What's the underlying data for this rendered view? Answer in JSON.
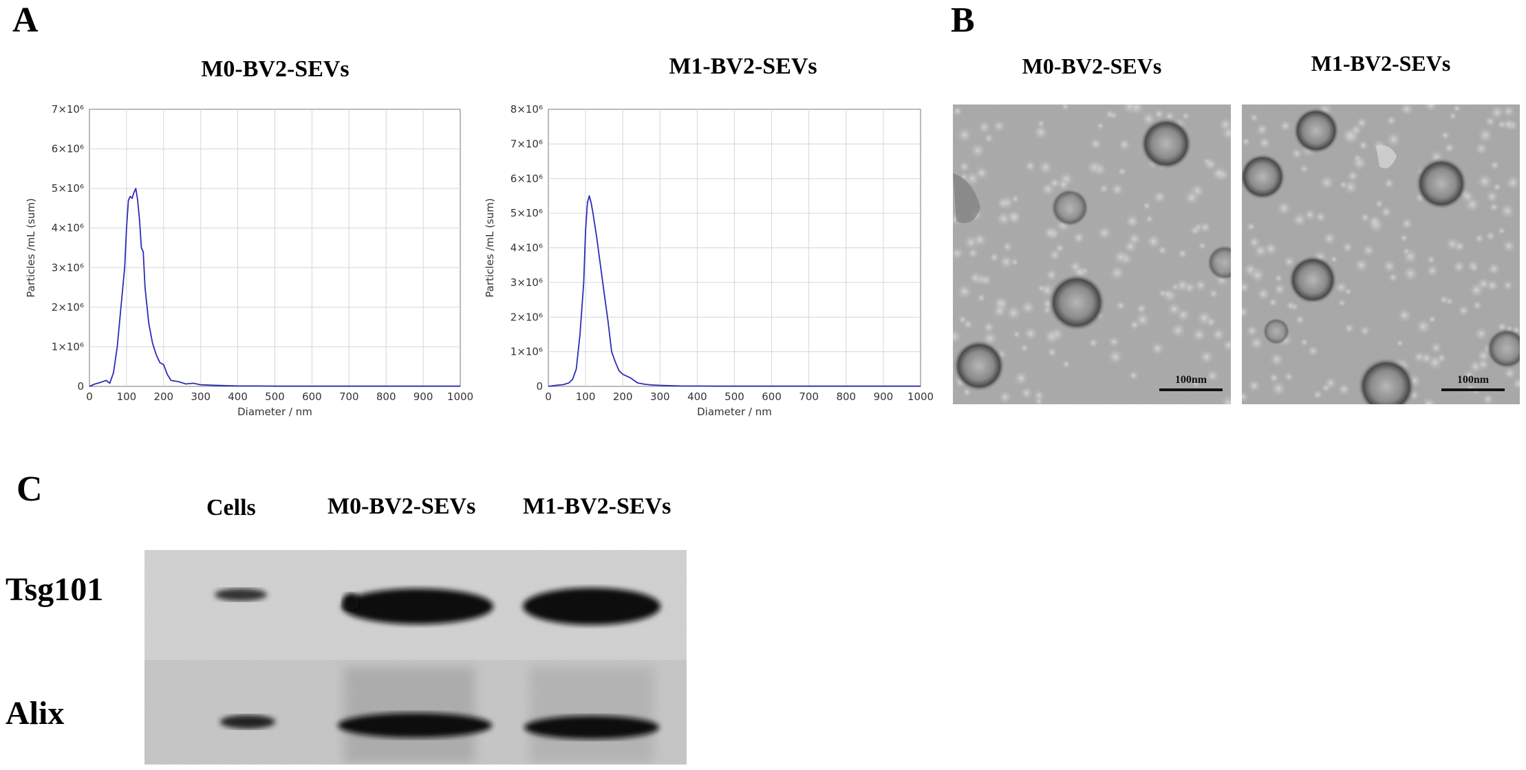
{
  "figure": {
    "panel_labels": {
      "a": "A",
      "b": "B",
      "c": "C"
    }
  },
  "chart_data": [
    {
      "type": "line",
      "title": "M0-BV2-SEVs",
      "xlabel": "Diameter / nm",
      "ylabel": "Particles /mL (sum)",
      "xlim": [
        0,
        1000
      ],
      "ylim": [
        0,
        7000000
      ],
      "xticks": [
        0,
        100,
        200,
        300,
        400,
        500,
        600,
        700,
        800,
        900,
        1000
      ],
      "yticks": [
        "0",
        "1×10⁶",
        "2×10⁶",
        "3×10⁶",
        "4×10⁶",
        "5×10⁶",
        "6×10⁶",
        "7×10⁶"
      ],
      "grid": true,
      "series": [
        {
          "color": "#2b2bb8",
          "x": [
            0,
            15,
            30,
            45,
            55,
            65,
            75,
            85,
            95,
            100,
            105,
            110,
            115,
            120,
            125,
            130,
            135,
            140,
            145,
            150,
            160,
            170,
            180,
            190,
            200,
            210,
            220,
            240,
            260,
            280,
            300,
            330,
            360,
            400,
            450,
            500,
            600,
            700,
            800,
            900,
            1000
          ],
          "y": [
            0,
            60000,
            100000,
            150000,
            80000,
            350000,
            1000000,
            2000000,
            3000000,
            4000000,
            4700000,
            4800000,
            4750000,
            4900000,
            5000000,
            4700000,
            4200000,
            3500000,
            3400000,
            2500000,
            1600000,
            1100000,
            800000,
            600000,
            550000,
            300000,
            150000,
            120000,
            60000,
            80000,
            40000,
            30000,
            20000,
            10000,
            10000,
            5000,
            5000,
            5000,
            5000,
            5000,
            5000
          ]
        }
      ]
    },
    {
      "type": "line",
      "title": "M1-BV2-SEVs",
      "xlabel": "Diameter / nm",
      "ylabel": "Particles /mL (sum)",
      "xlim": [
        0,
        1000
      ],
      "ylim": [
        0,
        8000000
      ],
      "xticks": [
        0,
        100,
        200,
        300,
        400,
        500,
        600,
        700,
        800,
        900,
        1000
      ],
      "yticks": [
        "0",
        "1×10⁶",
        "2×10⁶",
        "3×10⁶",
        "4×10⁶",
        "5×10⁶",
        "6×10⁶",
        "7×10⁶",
        "8×10⁶"
      ],
      "grid": true,
      "series": [
        {
          "color": "#2b2bb8",
          "x": [
            0,
            20,
            40,
            55,
            65,
            75,
            85,
            95,
            100,
            105,
            110,
            115,
            120,
            130,
            140,
            150,
            160,
            170,
            180,
            190,
            200,
            210,
            220,
            240,
            260,
            280,
            300,
            330,
            360,
            400,
            450,
            500,
            600,
            700,
            800,
            900,
            1000
          ],
          "y": [
            0,
            30000,
            50000,
            100000,
            200000,
            500000,
            1500000,
            3000000,
            4500000,
            5300000,
            5500000,
            5300000,
            5000000,
            4300000,
            3500000,
            2700000,
            1900000,
            1000000,
            700000,
            450000,
            350000,
            300000,
            250000,
            100000,
            60000,
            40000,
            30000,
            20000,
            10000,
            10000,
            5000,
            5000,
            5000,
            5000,
            5000,
            5000,
            5000
          ]
        }
      ]
    }
  ],
  "em": {
    "titles": [
      "M0-BV2-SEVs",
      "M1-BV2-SEVs"
    ],
    "scale_bar": "100nm"
  },
  "western_blot": {
    "lanes": [
      "Cells",
      "M0-BV2-SEVs",
      "M1-BV2-SEVs"
    ],
    "rows": [
      "Tsg101",
      "Alix"
    ]
  }
}
